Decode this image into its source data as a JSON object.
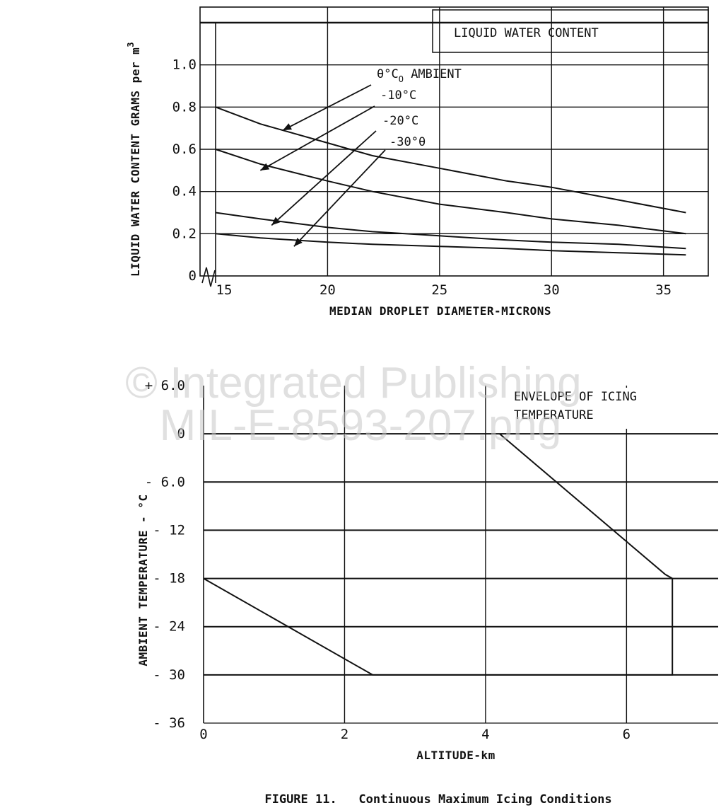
{
  "watermark": {
    "line1": "© Integrated Publishing",
    "line2": "MIL-E-8593-207.png"
  },
  "figure_caption": "FIGURE 11.   Continuous Maximum Icing Conditions",
  "colors": {
    "ink": "#111111",
    "grid": "#111111",
    "background": "#ffffff",
    "watermark": "#c8c8c8"
  },
  "chart_data": [
    {
      "type": "line",
      "title": "LIQUID WATER CONTENT",
      "xlabel": "MEDIAN DROPLET DIAMETER-MICRONS",
      "ylabel": "LIQUID WATER CONTENT GRAMS per m",
      "ylabel_sup": "3",
      "xlim": [
        15,
        37
      ],
      "ylim": [
        0,
        1.2
      ],
      "x_ticks": [
        15,
        20,
        25,
        30,
        35
      ],
      "x_tick_labels": [
        "15",
        "20",
        "25",
        "30",
        "35"
      ],
      "y_ticks": [
        0,
        0.2,
        0.4,
        0.6,
        0.8,
        1.0
      ],
      "y_tick_labels": [
        "0",
        "0.2",
        "0.4",
        "0.6",
        "0.8",
        "1.0"
      ],
      "grid": true,
      "legend_lines": [
        {
          "text": "θ°C",
          "sub": "O",
          "rest": " AMBIENT"
        },
        {
          "text": "-10°C",
          "sub": "",
          "rest": ""
        },
        {
          "text": "-20°C",
          "sub": "",
          "rest": ""
        },
        {
          "text": "-30°θ",
          "sub": "",
          "rest": ""
        }
      ],
      "series": [
        {
          "x": [
            15,
            17,
            20,
            22,
            25,
            28,
            30,
            33,
            36
          ],
          "y": [
            0.8,
            0.72,
            0.63,
            0.57,
            0.51,
            0.45,
            0.42,
            0.36,
            0.3
          ]
        },
        {
          "x": [
            15,
            17,
            20,
            22,
            25,
            28,
            30,
            33,
            36
          ],
          "y": [
            0.6,
            0.53,
            0.45,
            0.4,
            0.34,
            0.3,
            0.27,
            0.24,
            0.2
          ]
        },
        {
          "x": [
            15,
            17,
            20,
            22,
            25,
            28,
            30,
            33,
            36
          ],
          "y": [
            0.3,
            0.27,
            0.23,
            0.21,
            0.19,
            0.17,
            0.16,
            0.15,
            0.13
          ]
        },
        {
          "x": [
            15,
            17,
            20,
            22,
            25,
            28,
            30,
            33,
            36
          ],
          "y": [
            0.2,
            0.18,
            0.16,
            0.15,
            0.14,
            0.13,
            0.12,
            0.11,
            0.1
          ]
        }
      ]
    },
    {
      "type": "line",
      "title": "ENVELOPE OF ICING TEMPERATURE",
      "title_lines": [
        "ENVELOPE OF ICING",
        "TEMPERATURE"
      ],
      "xlabel": "ALTITUDE-km",
      "ylabel": "AMBIENT TEMPERATURE - °C",
      "xlim": [
        0,
        7.3
      ],
      "ylim": [
        -36,
        6
      ],
      "x_ticks": [
        0,
        2,
        4,
        6
      ],
      "x_tick_labels": [
        "0",
        "2",
        "4",
        "6"
      ],
      "y_ticks": [
        6,
        0,
        -6,
        -12,
        -18,
        -24,
        -30,
        -36
      ],
      "y_tick_labels": [
        "+ 6.0",
        "0",
        "- 6.0",
        "- 12",
        "- 18",
        "- 24",
        "- 30",
        "- 36"
      ],
      "grid": true,
      "envelope": {
        "x": [
          0,
          2.4,
          6.65,
          6.65,
          6.55,
          4.2,
          0
        ],
        "y": [
          -18,
          -30,
          -30,
          -18,
          -17.5,
          0,
          0
        ]
      }
    }
  ]
}
